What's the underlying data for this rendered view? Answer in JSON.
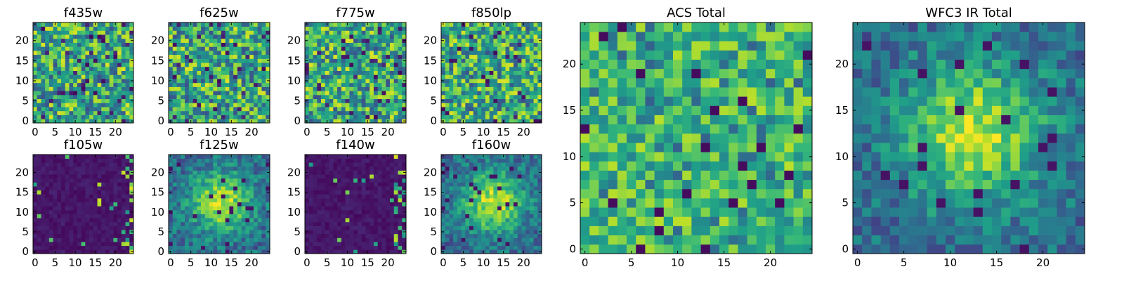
{
  "chart_data": [
    {
      "type": "heatmap",
      "title": "f435w",
      "seed": 11,
      "style": "noise",
      "colormap": "viridis",
      "x_ticks": [
        "0",
        "5",
        "10",
        "15",
        "20"
      ],
      "y_ticks": [
        "0",
        "5",
        "10",
        "15",
        "20"
      ],
      "xlim": [
        -0.5,
        24.5
      ],
      "ylim": [
        -0.5,
        24.5
      ],
      "grid_size": [
        25,
        25
      ]
    },
    {
      "type": "heatmap",
      "title": "f625w",
      "seed": 23,
      "style": "noise",
      "colormap": "viridis",
      "x_ticks": [
        "0",
        "5",
        "10",
        "15",
        "20"
      ],
      "y_ticks": [
        "0",
        "5",
        "10",
        "15",
        "20"
      ],
      "xlim": [
        -0.5,
        24.5
      ],
      "ylim": [
        -0.5,
        24.5
      ],
      "grid_size": [
        25,
        25
      ]
    },
    {
      "type": "heatmap",
      "title": "f775w",
      "seed": 37,
      "style": "noise",
      "colormap": "viridis",
      "x_ticks": [
        "0",
        "5",
        "10",
        "15",
        "20"
      ],
      "y_ticks": [
        "0",
        "5",
        "10",
        "15",
        "20"
      ],
      "xlim": [
        -0.5,
        24.5
      ],
      "ylim": [
        -0.5,
        24.5
      ],
      "grid_size": [
        25,
        25
      ]
    },
    {
      "type": "heatmap",
      "title": "f850lp",
      "seed": 41,
      "style": "noise",
      "colormap": "viridis",
      "x_ticks": [
        "0",
        "5",
        "10",
        "15",
        "20"
      ],
      "y_ticks": [
        "0",
        "5",
        "10",
        "15",
        "20"
      ],
      "xlim": [
        -0.5,
        24.5
      ],
      "ylim": [
        -0.5,
        24.5
      ],
      "grid_size": [
        25,
        25
      ]
    },
    {
      "type": "heatmap",
      "title": "f105w",
      "seed": 53,
      "style": "dark",
      "colormap": "viridis",
      "x_ticks": [
        "0",
        "5",
        "10",
        "15",
        "20"
      ],
      "y_ticks": [
        "0",
        "5",
        "10",
        "15",
        "20"
      ],
      "xlim": [
        -0.5,
        24.5
      ],
      "ylim": [
        -0.5,
        24.5
      ],
      "grid_size": [
        25,
        25
      ]
    },
    {
      "type": "heatmap",
      "title": "f125w",
      "seed": 67,
      "style": "blob",
      "colormap": "viridis",
      "x_ticks": [
        "0",
        "5",
        "10",
        "15",
        "20"
      ],
      "y_ticks": [
        "0",
        "5",
        "10",
        "15",
        "20"
      ],
      "xlim": [
        -0.5,
        24.5
      ],
      "ylim": [
        -0.5,
        24.5
      ],
      "grid_size": [
        25,
        25
      ]
    },
    {
      "type": "heatmap",
      "title": "f140w",
      "seed": 71,
      "style": "dark",
      "colormap": "viridis",
      "x_ticks": [
        "0",
        "5",
        "10",
        "15",
        "20"
      ],
      "y_ticks": [
        "0",
        "5",
        "10",
        "15",
        "20"
      ],
      "xlim": [
        -0.5,
        24.5
      ],
      "ylim": [
        -0.5,
        24.5
      ],
      "grid_size": [
        25,
        25
      ]
    },
    {
      "type": "heatmap",
      "title": "f160w",
      "seed": 83,
      "style": "blob",
      "colormap": "viridis",
      "x_ticks": [
        "0",
        "5",
        "10",
        "15",
        "20"
      ],
      "y_ticks": [
        "0",
        "5",
        "10",
        "15",
        "20"
      ],
      "xlim": [
        -0.5,
        24.5
      ],
      "ylim": [
        -0.5,
        24.5
      ],
      "grid_size": [
        25,
        25
      ]
    },
    {
      "type": "heatmap",
      "title": "ACS Total",
      "seed": 97,
      "style": "acs",
      "colormap": "viridis",
      "x_ticks": [
        "0",
        "5",
        "10",
        "15",
        "20"
      ],
      "y_ticks": [
        "0",
        "5",
        "10",
        "15",
        "20"
      ],
      "xlim": [
        -0.5,
        24.5
      ],
      "ylim": [
        -0.5,
        24.5
      ],
      "grid_size": [
        25,
        25
      ]
    },
    {
      "type": "heatmap",
      "title": "WFC3 IR Total",
      "seed": 101,
      "style": "blob",
      "colormap": "viridis",
      "x_ticks": [
        "0",
        "5",
        "10",
        "15",
        "20"
      ],
      "y_ticks": [
        "0",
        "5",
        "10",
        "15",
        "20"
      ],
      "xlim": [
        -0.5,
        24.5
      ],
      "ylim": [
        -0.5,
        24.5
      ],
      "grid_size": [
        25,
        25
      ]
    }
  ]
}
